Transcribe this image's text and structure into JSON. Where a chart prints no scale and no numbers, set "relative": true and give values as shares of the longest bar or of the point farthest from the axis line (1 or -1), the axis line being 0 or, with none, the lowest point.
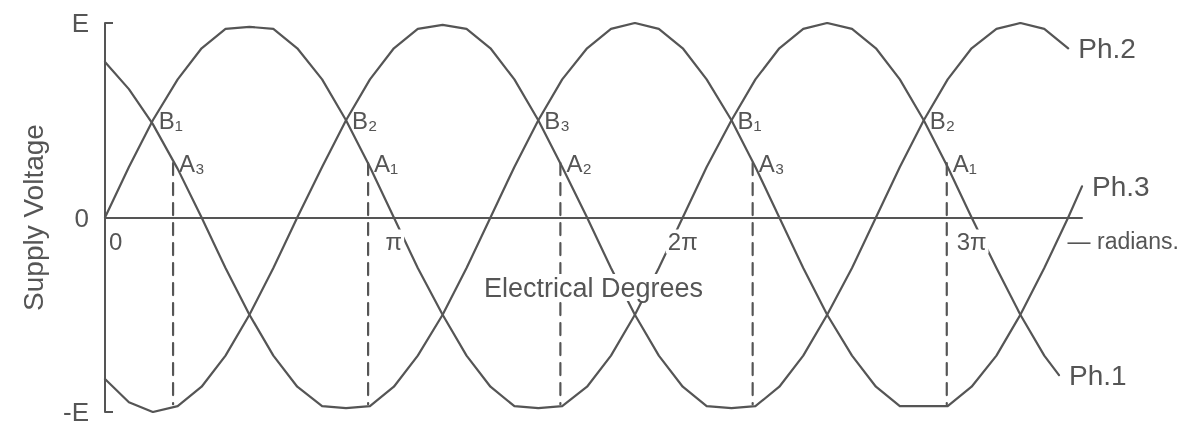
{
  "chart_data": {
    "type": "line",
    "xlabel": "Electrical Degrees",
    "ylabel": "Supply Voltage",
    "relative": true,
    "x": [
      0,
      0.26,
      0.52,
      0.79,
      1.05,
      1.31,
      1.57,
      1.83,
      2.09,
      2.36,
      2.62,
      2.88,
      3.14,
      3.4,
      3.67,
      3.93,
      4.19,
      4.45,
      4.71,
      4.97,
      5.24,
      5.5,
      5.76,
      6.02,
      6.28,
      6.54,
      6.81,
      7.07,
      7.33,
      7.59,
      7.85,
      8.12,
      8.38,
      8.64,
      8.9,
      9.16,
      9.42,
      9.69,
      9.95,
      10.21,
      10.47
    ],
    "xlim": [
      0,
      10.62
    ],
    "xticks": [
      0,
      {
        "value": 3.14,
        "label": "π"
      },
      {
        "value": 6.28,
        "label": "2π"
      },
      {
        "value": 9.42,
        "label": "3π"
      }
    ],
    "marker": "none",
    "line_style": "solid",
    "series": [
      {
        "name": "Ph.1",
        "color": "#555555",
        "x": [
          0,
          0.26,
          0.52,
          0.79,
          1.05,
          1.31,
          1.57,
          1.83,
          2.09,
          2.36,
          2.62,
          2.88,
          3.14,
          3.4,
          3.67,
          3.93,
          4.19,
          4.45,
          4.71,
          4.97,
          5.24,
          5.5,
          5.76,
          6.02,
          6.28,
          6.54,
          6.81,
          7.07,
          7.33,
          7.59,
          7.85,
          8.12,
          8.38,
          8.64,
          8.9,
          9.16,
          9.42,
          9.69,
          9.95,
          10.21,
          10.37
        ],
        "values": [
          0,
          0.26,
          0.5,
          0.71,
          0.87,
          0.97,
          0.98,
          0.97,
          0.87,
          0.71,
          0.5,
          0.26,
          0,
          -0.26,
          -0.5,
          -0.71,
          -0.87,
          -0.97,
          -0.98,
          -0.97,
          -0.87,
          -0.71,
          -0.5,
          -0.26,
          0,
          0.26,
          0.5,
          0.71,
          0.87,
          0.97,
          1,
          0.97,
          0.87,
          0.71,
          0.5,
          0.26,
          0,
          -0.26,
          -0.5,
          -0.71,
          -0.81
        ]
      },
      {
        "name": "Ph.2",
        "color": "#555555",
        "values": [
          -0.83,
          -0.95,
          -1,
          -0.97,
          -0.87,
          -0.71,
          -0.5,
          -0.26,
          0,
          0.26,
          0.5,
          0.71,
          0.87,
          0.97,
          0.99,
          0.97,
          0.87,
          0.71,
          0.5,
          0.26,
          0,
          -0.26,
          -0.5,
          -0.71,
          -0.87,
          -0.97,
          -0.98,
          -0.97,
          -0.87,
          -0.71,
          -0.5,
          -0.26,
          0,
          0.26,
          0.5,
          0.71,
          0.87,
          0.97,
          1,
          0.97,
          0.87
        ]
      },
      {
        "name": "Ph.3",
        "color": "#555555",
        "x": [
          0,
          0.26,
          0.52,
          0.79,
          1.05,
          1.31,
          1.57,
          1.83,
          2.09,
          2.36,
          2.62,
          2.88,
          3.14,
          3.4,
          3.67,
          3.93,
          4.19,
          4.45,
          4.71,
          4.97,
          5.24,
          5.5,
          5.76,
          6.02,
          6.28,
          6.54,
          6.81,
          7.07,
          7.33,
          7.59,
          7.85,
          8.12,
          8.38,
          8.64,
          8.9,
          9.16,
          9.42,
          9.69,
          9.95,
          10.21,
          10.47,
          10.62
        ],
        "values": [
          0.8,
          0.66,
          0.48,
          0.25,
          0,
          -0.26,
          -0.5,
          -0.71,
          -0.87,
          -0.97,
          -0.98,
          -0.97,
          -0.87,
          -0.71,
          -0.5,
          -0.26,
          0,
          0.26,
          0.5,
          0.71,
          0.87,
          0.97,
          1,
          0.97,
          0.87,
          0.71,
          0.5,
          0.26,
          0,
          -0.26,
          -0.5,
          -0.71,
          -0.87,
          -0.97,
          -0.97,
          -0.97,
          -0.87,
          -0.71,
          -0.5,
          -0.26,
          0,
          0.16
        ]
      },
      {
        "color": "#555555",
        "line_style": "dashed",
        "x": [
          0.74,
          0.74
        ],
        "values": [
          0.28,
          -0.96
        ]
      },
      {
        "color": "#555555",
        "line_style": "dashed",
        "x": [
          2.86,
          2.86
        ],
        "values": [
          0.28,
          -0.96
        ]
      },
      {
        "color": "#555555",
        "line_style": "dashed",
        "x": [
          4.95,
          4.95
        ],
        "values": [
          0.28,
          -0.96
        ]
      },
      {
        "color": "#555555",
        "line_style": "dashed",
        "x": [
          7.04,
          7.04
        ],
        "values": [
          0.28,
          -0.96
        ]
      },
      {
        "color": "#555555",
        "line_style": "dashed",
        "x": [
          9.15,
          9.15
        ],
        "values": [
          0.28,
          -0.96
        ]
      }
    ],
    "annotations": [
      "E",
      "0",
      "-E",
      {
        "text": "B₁",
        "x": 0.52,
        "y": 0.5
      },
      {
        "text": "A₃",
        "x": 0.74,
        "y": 0.28
      },
      {
        "text": "B₂",
        "x": 2.62,
        "y": 0.5
      },
      {
        "text": "A₁",
        "x": 2.86,
        "y": 0.28
      },
      {
        "text": "B₃",
        "x": 4.71,
        "y": 0.5
      },
      {
        "text": "A₂",
        "x": 4.95,
        "y": 0.28
      },
      {
        "text": "B₁",
        "x": 6.81,
        "y": 0.5
      },
      {
        "text": "A₃",
        "x": 7.04,
        "y": 0.28
      },
      {
        "text": "B₂",
        "x": 8.9,
        "y": 0.5
      },
      {
        "text": "A₁",
        "x": 9.15,
        "y": 0.28
      },
      "— radians."
    ]
  }
}
